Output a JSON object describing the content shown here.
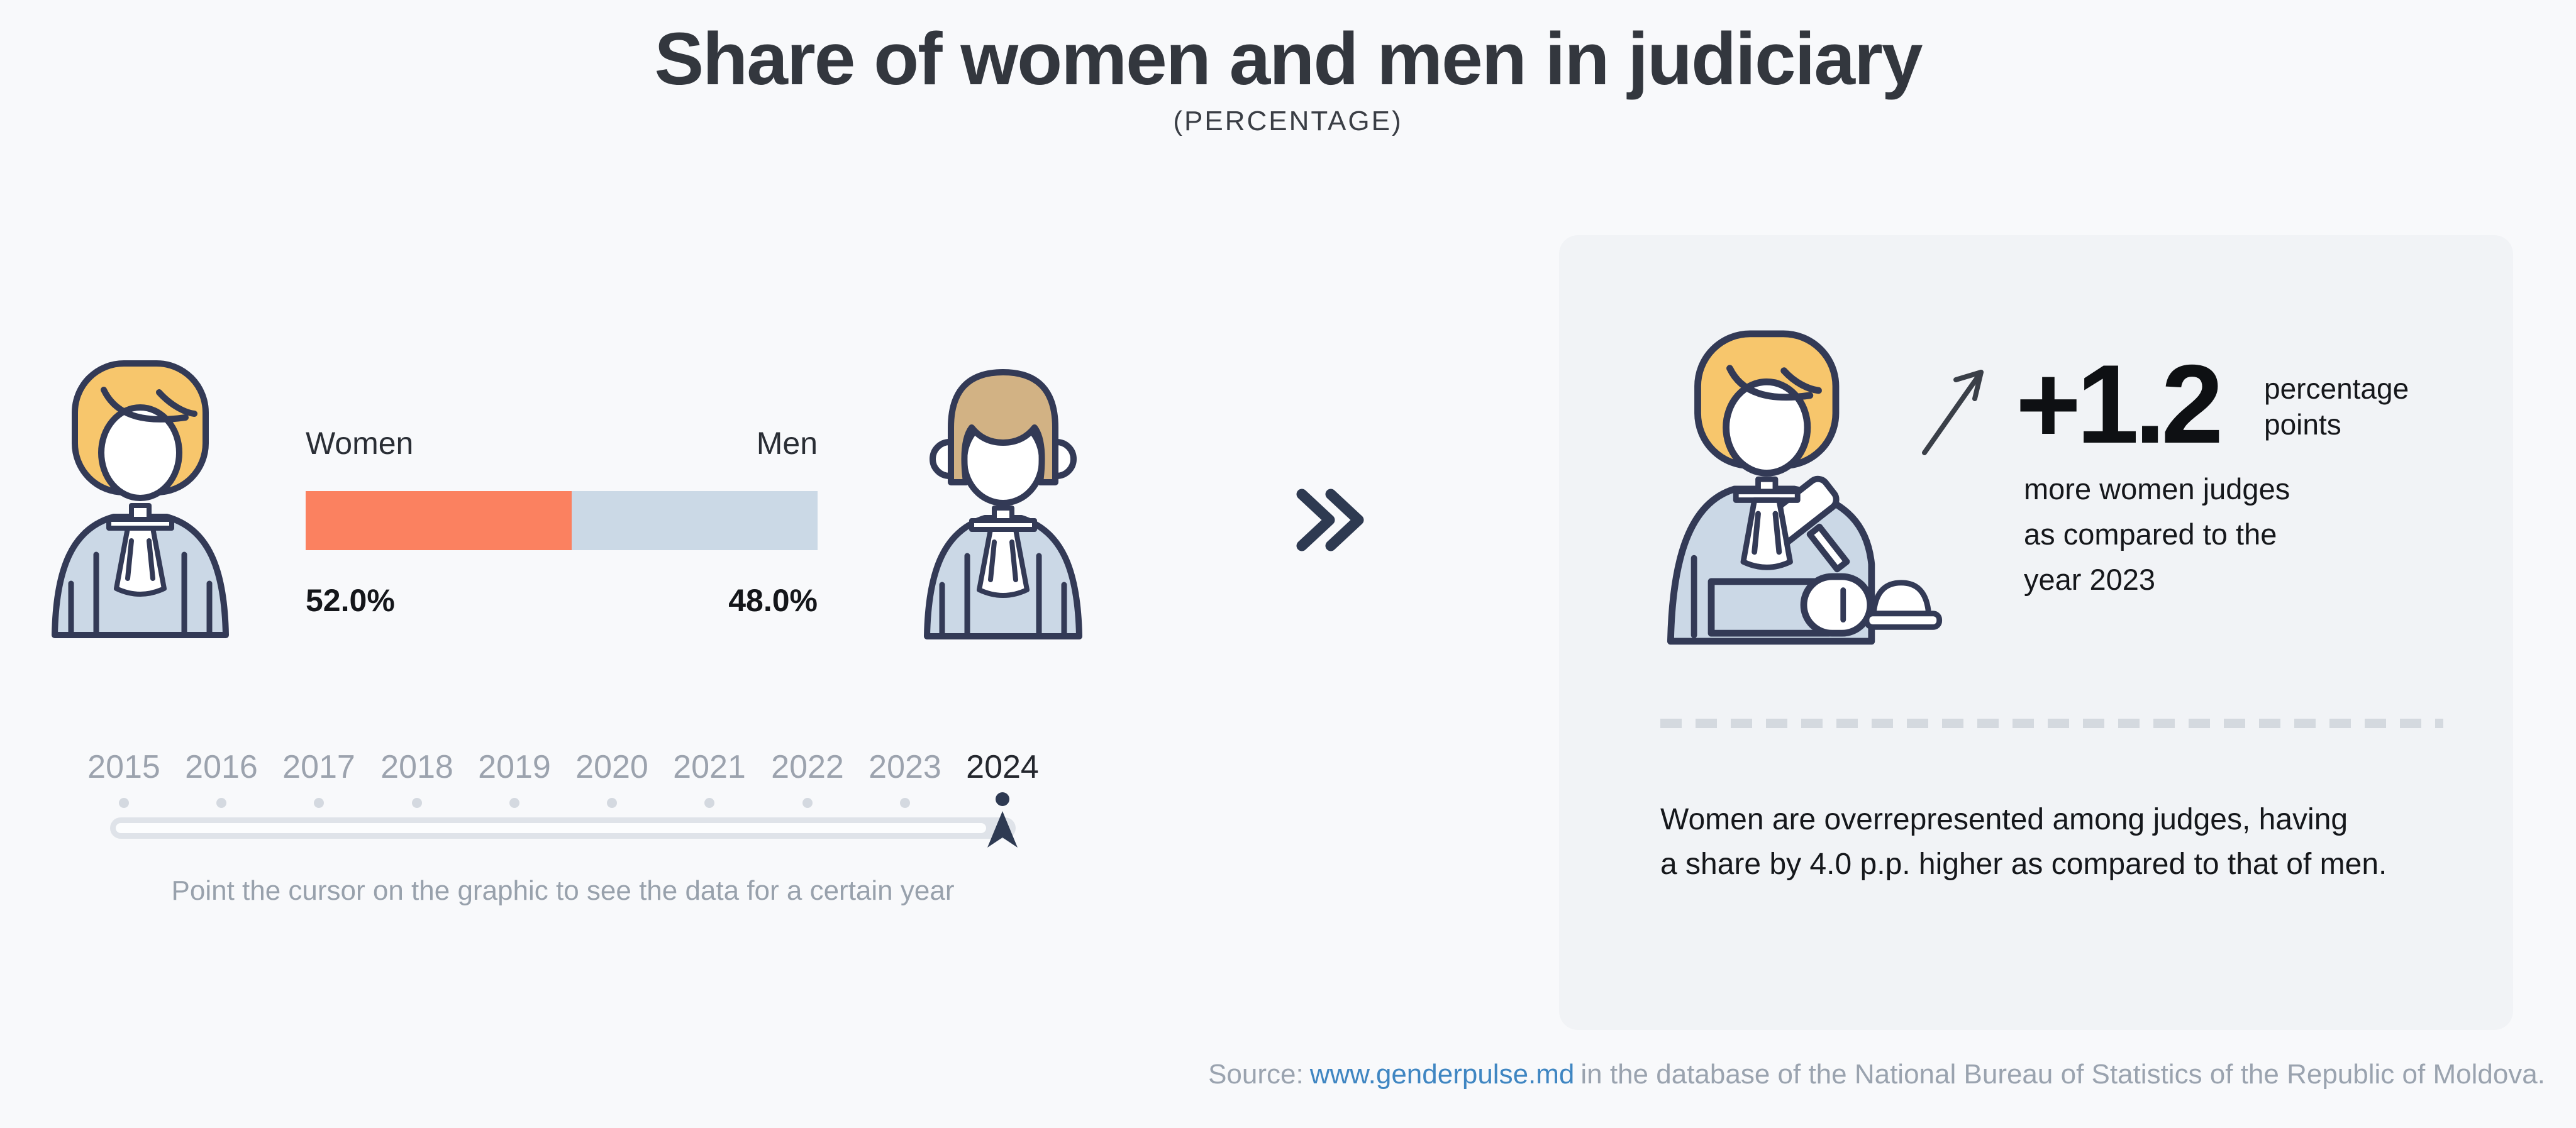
{
  "header": {
    "title": "Share of women and men in judiciary",
    "subtitle": "(PERCENTAGE)"
  },
  "chart_data": {
    "type": "bar",
    "title": "Share of women and men in judiciary",
    "subtitle": "(PERCENTAGE)",
    "categories": [
      "Women",
      "Men"
    ],
    "values": [
      52.0,
      48.0
    ],
    "value_labels": [
      "52.0%",
      "48.0%"
    ],
    "unit": "percent",
    "colors": [
      "#FB8160",
      "#CBD9E6"
    ],
    "timeline_years": [
      "2015",
      "2016",
      "2017",
      "2018",
      "2019",
      "2020",
      "2021",
      "2022",
      "2023",
      "2024"
    ],
    "selected_year": "2024",
    "annotations": {
      "delta_vs_previous_year": "+1.2 percentage points more women judges as compared to the year 2023",
      "gap": "Women have a share by 4.0 p.p. higher as compared to that of men"
    }
  },
  "bar": {
    "women_label": "Women",
    "men_label": "Men",
    "women_value": "52.0%",
    "men_value": "48.0%"
  },
  "timeline": {
    "years": [
      "2015",
      "2016",
      "2017",
      "2018",
      "2019",
      "2020",
      "2021",
      "2022",
      "2023",
      "2024"
    ],
    "selected": "2024",
    "hint": "Point the cursor on the graphic to see the data for a certain year"
  },
  "panel": {
    "delta_value": "+1.2",
    "unit_line1": "percentage",
    "unit_line2": "points",
    "desc_line1": "more women judges",
    "desc_line2": "as compared to the",
    "desc_line3": "year 2023",
    "summary_line1": "Women are overrepresented among judges, having",
    "summary_line2": "a share by 4.0 p.p. higher as compared to that of men."
  },
  "footer": {
    "source_prefix": "Source:",
    "link_text": "www.genderpulse.md",
    "source_suffix": "in the database of the National Bureau of Statistics of the Republic of Moldova."
  },
  "icons": {
    "double_chevron": "fast-forward-double-chevron",
    "increase_arrow": "up-right-trend-arrow",
    "woman_judge": "woman-judge-robe",
    "man_judge": "man-judge-robe",
    "woman_judge_gavel": "woman-judge-with-gavel",
    "timeline_thumb": "upward-pointer-pin"
  },
  "colors": {
    "accent_orange": "#FB8160",
    "bar_blue": "#CBD9E6",
    "navy_outline": "#333A56",
    "panel_bg": "#F1F3F6",
    "page_bg": "#F8F9FB",
    "link_blue": "#3F86C2",
    "muted_text": "#9AA3AF",
    "hair_blonde": "#F7C66C",
    "hair_brown": "#D2B284"
  }
}
